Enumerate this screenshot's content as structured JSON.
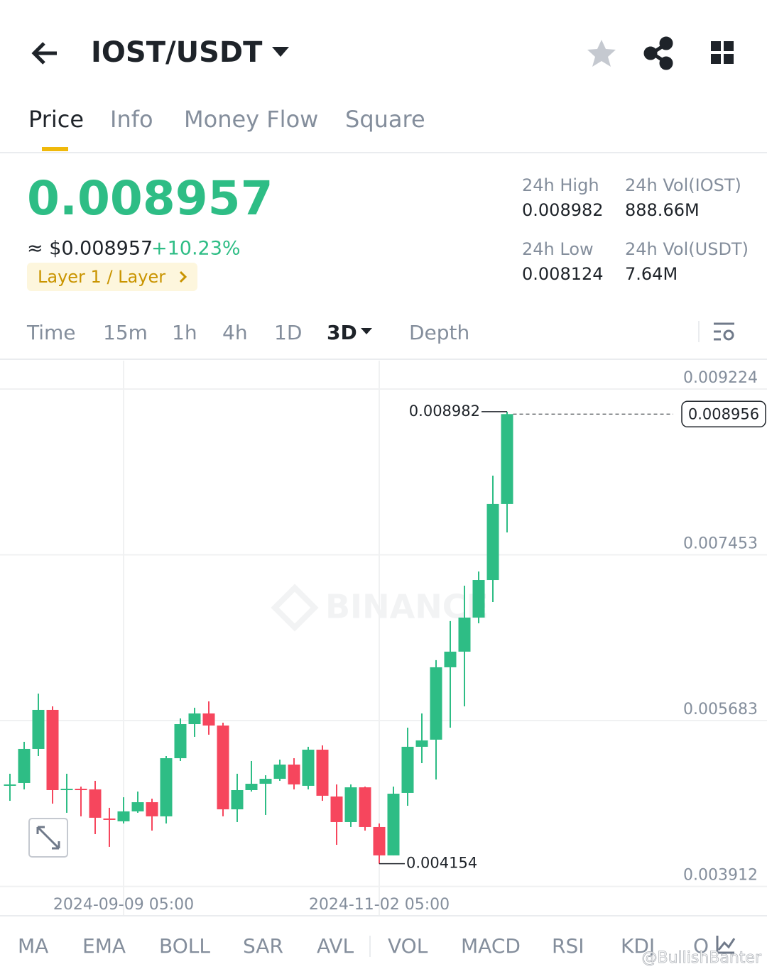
{
  "header": {
    "pair": "IOST/USDT"
  },
  "tabs": [
    "Price",
    "Info",
    "Money Flow",
    "Square"
  ],
  "price": {
    "last": "0.008957",
    "usd": "≈ $0.008957",
    "change": "+10.23%",
    "tag": "Layer 1 / Layer"
  },
  "stats": [
    {
      "label": "24h High",
      "value": "0.008982"
    },
    {
      "label": "24h Vol(IOST)",
      "value": "888.66M"
    },
    {
      "label": "24h Low",
      "value": "0.008124"
    },
    {
      "label": "24h Vol(USDT)",
      "value": "7.64M"
    }
  ],
  "timeframes": [
    "Time",
    "15m",
    "1h",
    "4h",
    "1D",
    "3D",
    "Depth"
  ],
  "indicators": [
    "MA",
    "EMA",
    "BOLL",
    "SAR",
    "AVL",
    "VOL",
    "MACD",
    "RSI",
    "KDJ",
    "O"
  ],
  "watermarks": [
    "BINANCE",
    "@BullishBanter"
  ],
  "chart_data": {
    "type": "candlestick",
    "categories": [
      null,
      null,
      null,
      null,
      null,
      null,
      null,
      null,
      "2024-09-09 05:00",
      null,
      null,
      null,
      null,
      null,
      null,
      null,
      null,
      null,
      null,
      null,
      null,
      null,
      null,
      null,
      null,
      null,
      "2024-11-02 05:00",
      null,
      null,
      null,
      null,
      null,
      null,
      null,
      null,
      null
    ],
    "open": [
      0.00499,
      0.005016,
      0.00538,
      0.005797,
      0.004948,
      0.004955,
      0.004948,
      0.004637,
      0.004607,
      0.004713,
      0.004811,
      0.00466,
      0.005281,
      0.005645,
      0.005759,
      0.00563,
      0.004735,
      0.00494,
      0.005008,
      0.005061,
      0.005213,
      0.004986,
      0.005372,
      0.004872,
      0.004599,
      0.00497,
      0.004546,
      0.004243,
      0.00491,
      0.005403,
      0.005479,
      0.006252,
      0.006419,
      0.006783,
      0.007184,
      0.007996
    ],
    "high": [
      0.005115,
      0.005456,
      0.005971,
      0.005835,
      0.005115,
      0.004978,
      0.005039,
      0.004751,
      0.004864,
      0.004925,
      0.004849,
      0.005304,
      0.005706,
      0.00582,
      0.005888,
      0.00566,
      0.005115,
      0.005251,
      0.005099,
      0.005266,
      0.005281,
      0.005403,
      0.005418,
      0.005001,
      0.005001,
      0.004978,
      0.004584,
      0.004978,
      0.005607,
      0.005759,
      0.006328,
      0.006745,
      0.007124,
      0.007275,
      0.008299,
      0.008982
    ],
    "low": [
      0.004826,
      0.004948,
      0.005304,
      0.004796,
      0.004698,
      0.00466,
      0.00447,
      0.004334,
      0.004584,
      0.004698,
      0.004508,
      0.004584,
      0.005251,
      0.005509,
      0.005532,
      0.00466,
      0.004599,
      0.004925,
      0.004675,
      0.005039,
      0.004948,
      0.004948,
      0.004826,
      0.004356,
      0.004546,
      0.004508,
      0.004154,
      0.004243,
      0.004773,
      0.005228,
      0.005054,
      0.005607,
      0.005835,
      0.006722,
      0.006949,
      0.007692
    ],
    "close": [
      0.005001,
      0.00538,
      0.005797,
      0.00494,
      0.004955,
      0.004948,
      0.004645,
      0.00463,
      0.004713,
      0.004811,
      0.00466,
      0.005281,
      0.005645,
      0.005759,
      0.00563,
      0.004735,
      0.00494,
      0.005008,
      0.005061,
      0.005213,
      0.005001,
      0.005372,
      0.00488,
      0.004599,
      0.00497,
      0.004546,
      0.004243,
      0.004902,
      0.005403,
      0.005471,
      0.006252,
      0.006419,
      0.006783,
      0.007184,
      0.007996,
      0.008956
    ],
    "up_color": "#2ebd85",
    "down_color": "#f6465d",
    "ylim": [
      0.003598,
      0.009527
    ],
    "yticks": [
      0.009224,
      0.007453,
      0.005683,
      0.003912
    ],
    "grid": true
  }
}
